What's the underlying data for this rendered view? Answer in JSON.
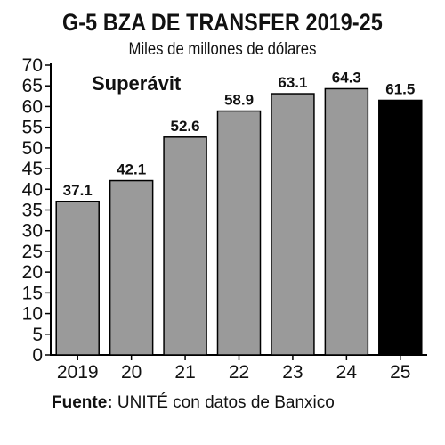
{
  "chart_data": {
    "type": "bar",
    "title": "G-5 BZA DE TRANSFER 2019-25",
    "subtitle": "Miles de millones de dólares",
    "annotation": "Superávit",
    "categories": [
      "2019",
      "20",
      "21",
      "22",
      "23",
      "24",
      "25"
    ],
    "values": [
      37.1,
      42.1,
      52.6,
      58.9,
      63.1,
      64.3,
      61.5
    ],
    "value_labels": [
      "37.1",
      "42.1",
      "52.6",
      "58.9",
      "63.1",
      "64.3",
      "61.5"
    ],
    "yticks": [
      0,
      5,
      10,
      15,
      20,
      25,
      30,
      35,
      40,
      45,
      50,
      55,
      60,
      65,
      70
    ],
    "ylim": [
      0,
      70
    ],
    "xlabel": "",
    "ylabel": "",
    "grid": false,
    "colors": {
      "bar": "#9a9a9a",
      "highlight_bar": "#000000",
      "bar_edge": "#000000",
      "text": "#111111"
    },
    "highlight_index": 6
  },
  "source": {
    "label": "Fuente:",
    "text": " UNITÉ con datos de Banxico"
  }
}
